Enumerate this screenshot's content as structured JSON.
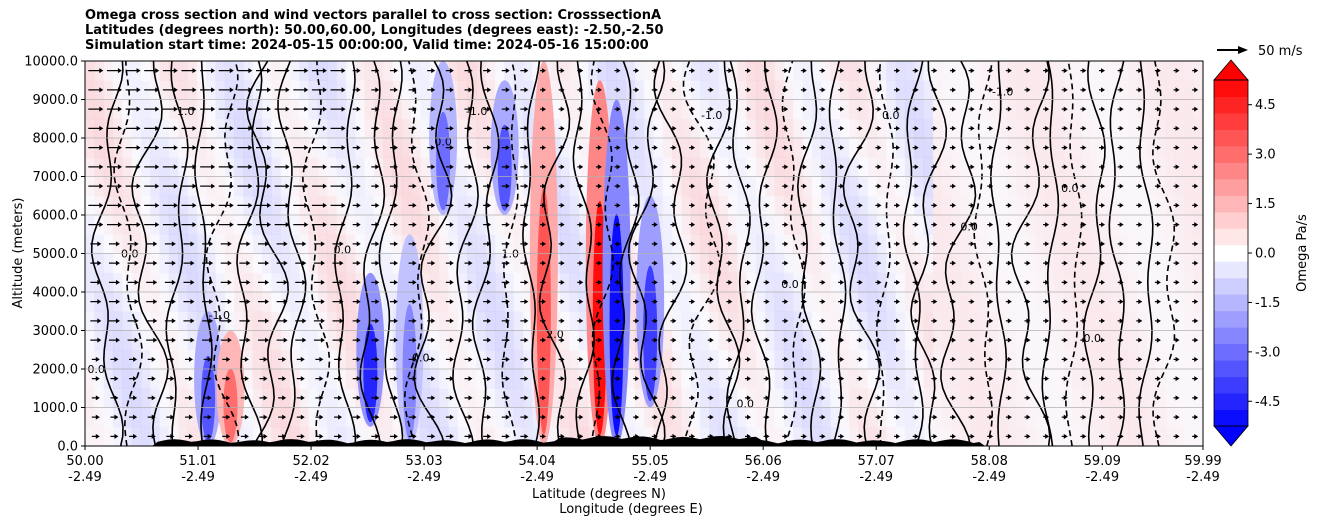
{
  "title": {
    "line1": "Omega cross section and wind vectors parallel to cross section: CrosssectionA",
    "line2": "Latitudes (degrees north): 50.00,60.00, Longitudes (degrees east): -2.50,-2.50",
    "line3": "Simulation start time: 2024-05-15 00:00:00, Valid time: 2024-05-16 15:00:00"
  },
  "chart_data": {
    "type": "heatmap",
    "title": "Omega cross section and wind vectors parallel to cross section: CrosssectionA",
    "ylabel": "Altitude (meters)",
    "xlabel_lat": "Latitude (degrees N)",
    "xlabel_lon": "Longitude (degrees E)",
    "ylim": [
      0,
      10000
    ],
    "xlim": [
      50.0,
      59.99
    ],
    "y_ticks": [
      "0.0",
      "1000.0",
      "2000.0",
      "3000.0",
      "4000.0",
      "5000.0",
      "6000.0",
      "7000.0",
      "8000.0",
      "9000.0",
      "10000.0"
    ],
    "x_ticks_lat": [
      "50.00",
      "51.01",
      "52.02",
      "53.03",
      "54.04",
      "55.05",
      "56.06",
      "57.07",
      "58.08",
      "59.09",
      "59.99"
    ],
    "x_ticks_lon": [
      "-2.49",
      "-2.49",
      "-2.49",
      "-2.49",
      "-2.49",
      "-2.49",
      "-2.49",
      "-2.49",
      "-2.49",
      "-2.49",
      "-2.49"
    ],
    "grid": true,
    "colorbar": {
      "label": "Omega Pa/s",
      "range": [
        -5.25,
        5.25
      ],
      "ticks": [
        "-4.5",
        "-3.0",
        "-1.5",
        "0.0",
        "1.5",
        "3.0",
        "4.5"
      ],
      "extend": "both"
    },
    "quiver_key": {
      "label": "50 m/s"
    },
    "omega_bands": [
      {
        "lat": 51.1,
        "alt_low": 0,
        "alt_high": 3500,
        "value": -3.5
      },
      {
        "lat": 51.3,
        "alt_low": 0,
        "alt_high": 3000,
        "value": 3.0
      },
      {
        "lat": 52.55,
        "alt_low": 500,
        "alt_high": 4500,
        "value": -4.5
      },
      {
        "lat": 52.9,
        "alt_low": 0,
        "alt_high": 5500,
        "value": -2.5
      },
      {
        "lat": 53.2,
        "alt_low": 6000,
        "alt_high": 10000,
        "value": -3.0
      },
      {
        "lat": 53.75,
        "alt_low": 6000,
        "alt_high": 9500,
        "value": -3.5
      },
      {
        "lat": 54.1,
        "alt_low": 0,
        "alt_high": 10000,
        "value": 3.5
      },
      {
        "lat": 54.6,
        "alt_low": 0,
        "alt_high": 9500,
        "value": 5.0
      },
      {
        "lat": 54.75,
        "alt_low": 0,
        "alt_high": 9000,
        "value": -5.0
      },
      {
        "lat": 55.05,
        "alt_low": 1000,
        "alt_high": 6500,
        "value": -4.0
      }
    ],
    "contour_labels": [
      "0.0",
      "0.0",
      "1.0",
      "-1.0",
      "0.0",
      "0.0",
      "-1.0",
      "0.0",
      "2.0",
      "1.0",
      "-1.0",
      "0.0",
      "0.0",
      "0.0",
      "0.0",
      "-1.0",
      "0.0",
      "0.0"
    ]
  }
}
